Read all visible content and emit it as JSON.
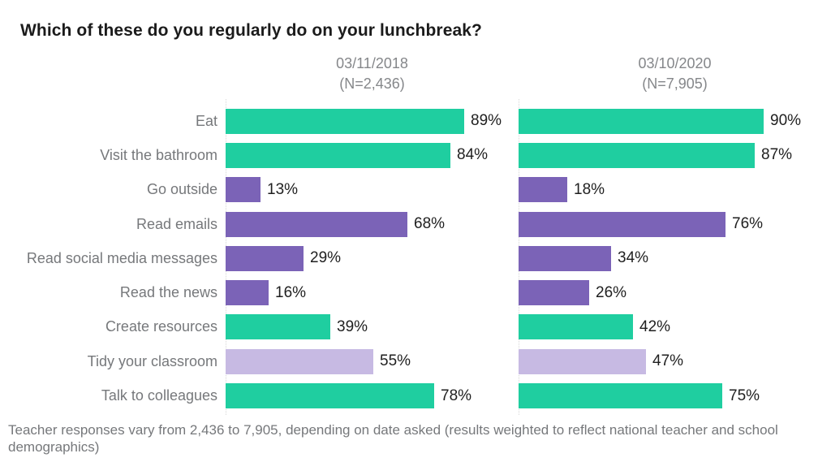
{
  "title": "Which of these do you regularly do on your lunchbreak?",
  "footnote": "Teacher responses vary from  2,436 to 7,905, depending on date asked (results weighted to reflect national teacher and school demographics)",
  "colors": {
    "green": "#1FCEA0",
    "purple": "#7B63B7",
    "lavender": "#C7BAE3",
    "axis_line": "#d7d7d7",
    "title_text": "#1b1b1b",
    "category_text": "#76787b",
    "header_text": "#85878a",
    "value_text": "#1f1f1f"
  },
  "chart_data": {
    "type": "bar",
    "orientation": "horizontal",
    "title": "Which of these do you regularly do on your lunchbreak?",
    "categories": [
      "Eat",
      "Visit the bathroom",
      "Go outside",
      "Read emails",
      "Read social media messages",
      "Read the news",
      "Create resources",
      "Tidy your classroom",
      "Talk to colleagues"
    ],
    "series": [
      {
        "name": "03/11/2018",
        "subtitle": "(N=2,436)",
        "values": [
          89,
          84,
          13,
          68,
          29,
          16,
          39,
          55,
          78
        ]
      },
      {
        "name": "03/10/2020",
        "subtitle": "(N=7,905)",
        "values": [
          90,
          87,
          18,
          76,
          34,
          26,
          42,
          47,
          75
        ]
      }
    ],
    "bar_colors": [
      "green",
      "green",
      "purple",
      "purple",
      "purple",
      "purple",
      "green",
      "lavender",
      "green"
    ],
    "value_suffix": "%",
    "xlim": [
      0,
      100
    ],
    "grid": false,
    "legend": "none",
    "value_labels": "outside-end"
  }
}
